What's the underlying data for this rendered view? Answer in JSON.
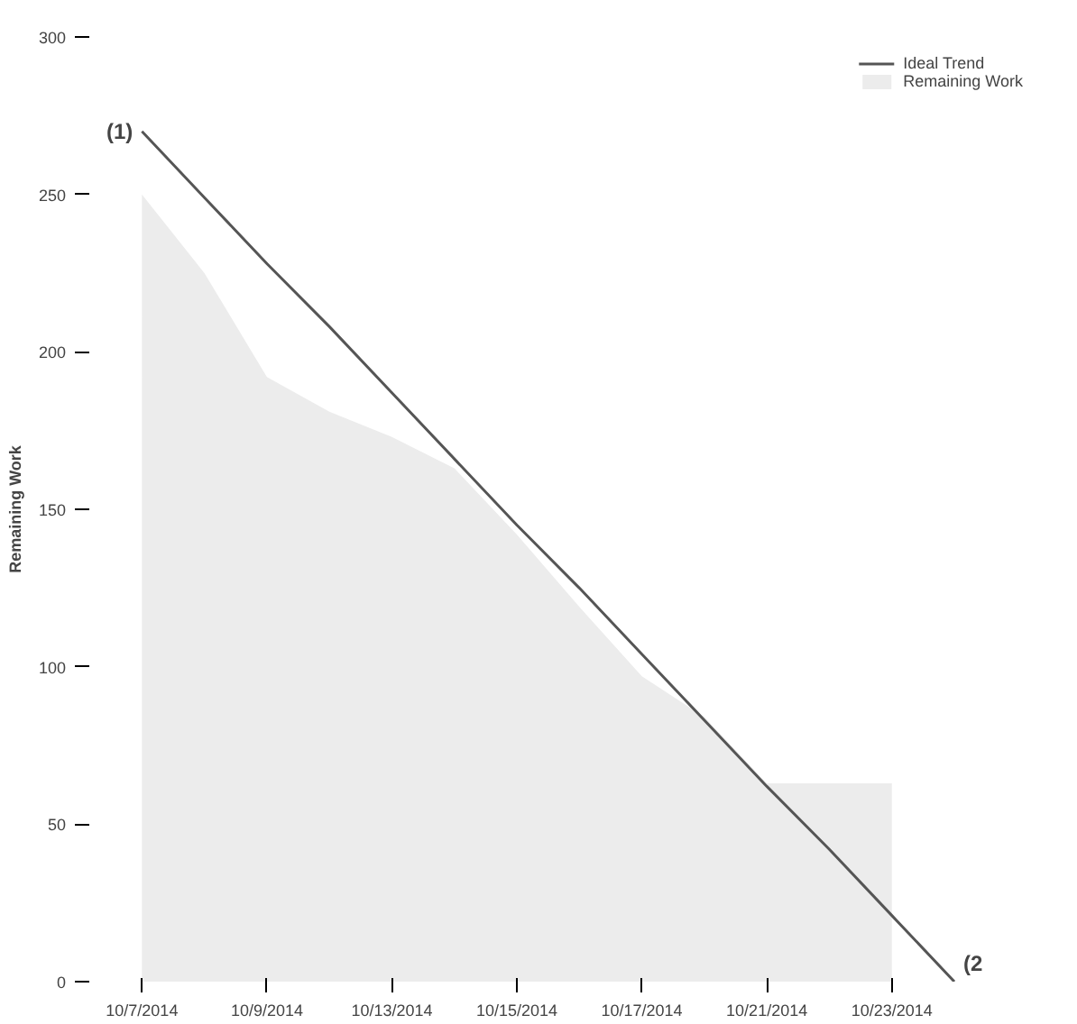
{
  "chart_data": {
    "type": "line",
    "ylabel": "Remaining Work",
    "categories": [
      "10/7/2014",
      null,
      "10/9/2014",
      null,
      "10/13/2014",
      null,
      "10/15/2014",
      null,
      "10/17/2014",
      null,
      "10/21/2014",
      null,
      "10/23/2014",
      null
    ],
    "ylim": [
      0,
      300
    ],
    "yticks": [
      0,
      50,
      100,
      150,
      200,
      250,
      300
    ],
    "series": [
      {
        "name": "Remaining Work",
        "type": "area",
        "color": "#ececec",
        "values": [
          250,
          225,
          192,
          181,
          173,
          163,
          142,
          119,
          97,
          84,
          63,
          63,
          63,
          null
        ]
      },
      {
        "name": "Ideal Trend",
        "color": "#555555",
        "values": [
          270,
          249,
          228,
          208,
          187,
          166,
          145,
          125,
          104,
          83,
          62,
          42,
          21,
          0
        ]
      }
    ],
    "annotations": [
      "(1)",
      "(2"
    ],
    "legend": "top right"
  }
}
